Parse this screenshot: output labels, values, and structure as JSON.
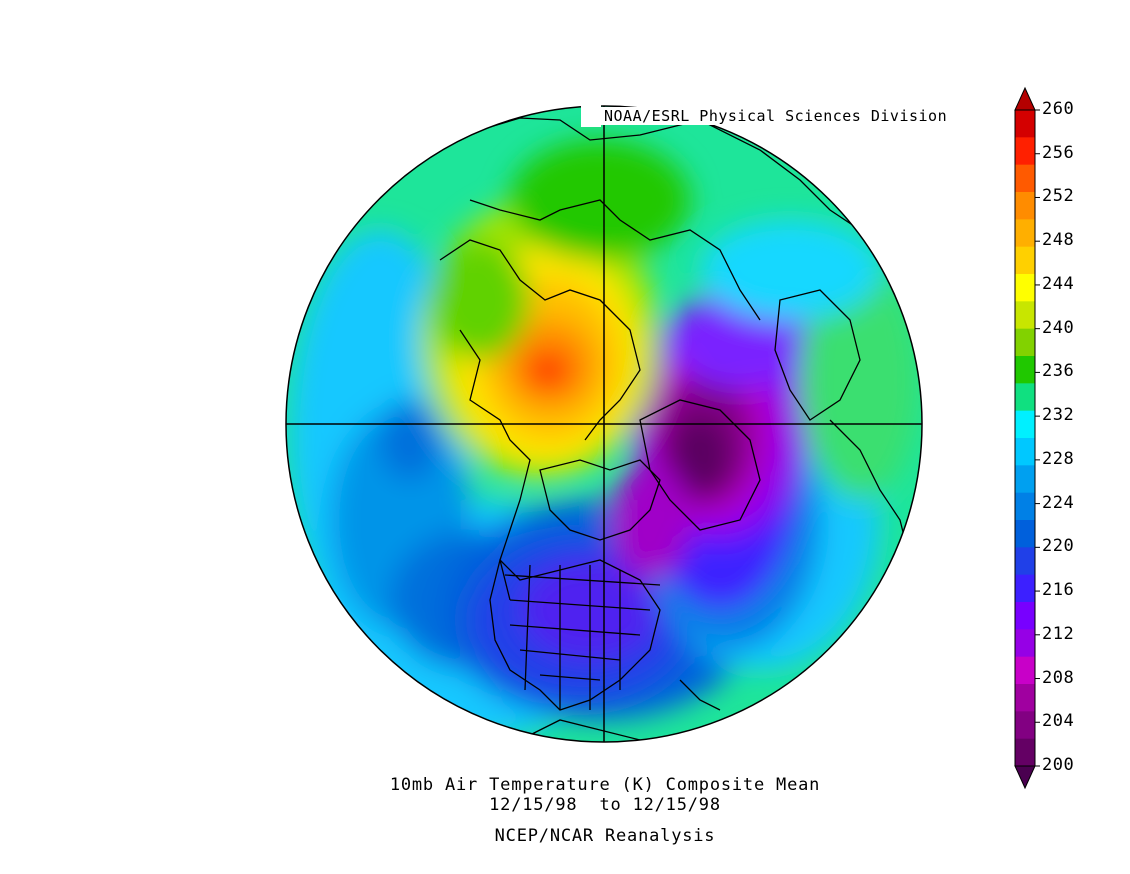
{
  "credit": "NOAA/ESRL Physical Sciences Division",
  "caption": {
    "line1": "10mb Air Temperature (K) Composite Mean",
    "line2": "12/15/98  to 12/15/98",
    "line3": "NCEP/NCAR Reanalysis"
  },
  "projection": "north-polar-stereographic",
  "variable": "air temperature",
  "level": "10mb",
  "units": "K",
  "colorbar": {
    "labels": [
      "260",
      "256",
      "252",
      "248",
      "244",
      "240",
      "236",
      "232",
      "228",
      "224",
      "220",
      "216",
      "212",
      "208",
      "204",
      "200"
    ],
    "colors": [
      "#d40000",
      "#ff2000",
      "#ff5a00",
      "#ff8c00",
      "#ffaf00",
      "#ffd000",
      "#ffff00",
      "#c8e600",
      "#82d200",
      "#20c800",
      "#10e080",
      "#00f0ff",
      "#00c8ff",
      "#00a0f0",
      "#0080e6",
      "#0060dc",
      "#2040e8",
      "#3c20ff",
      "#7800ff",
      "#9600e6",
      "#c800c8",
      "#a000a0",
      "#820082",
      "#640064"
    ],
    "min_arrow_color": "#4a0050",
    "max_arrow_color": "#b40000"
  },
  "regions": {
    "warm_core_eurasia_K": 258,
    "cold_core_arctic_K": 200,
    "background_K": 230
  }
}
